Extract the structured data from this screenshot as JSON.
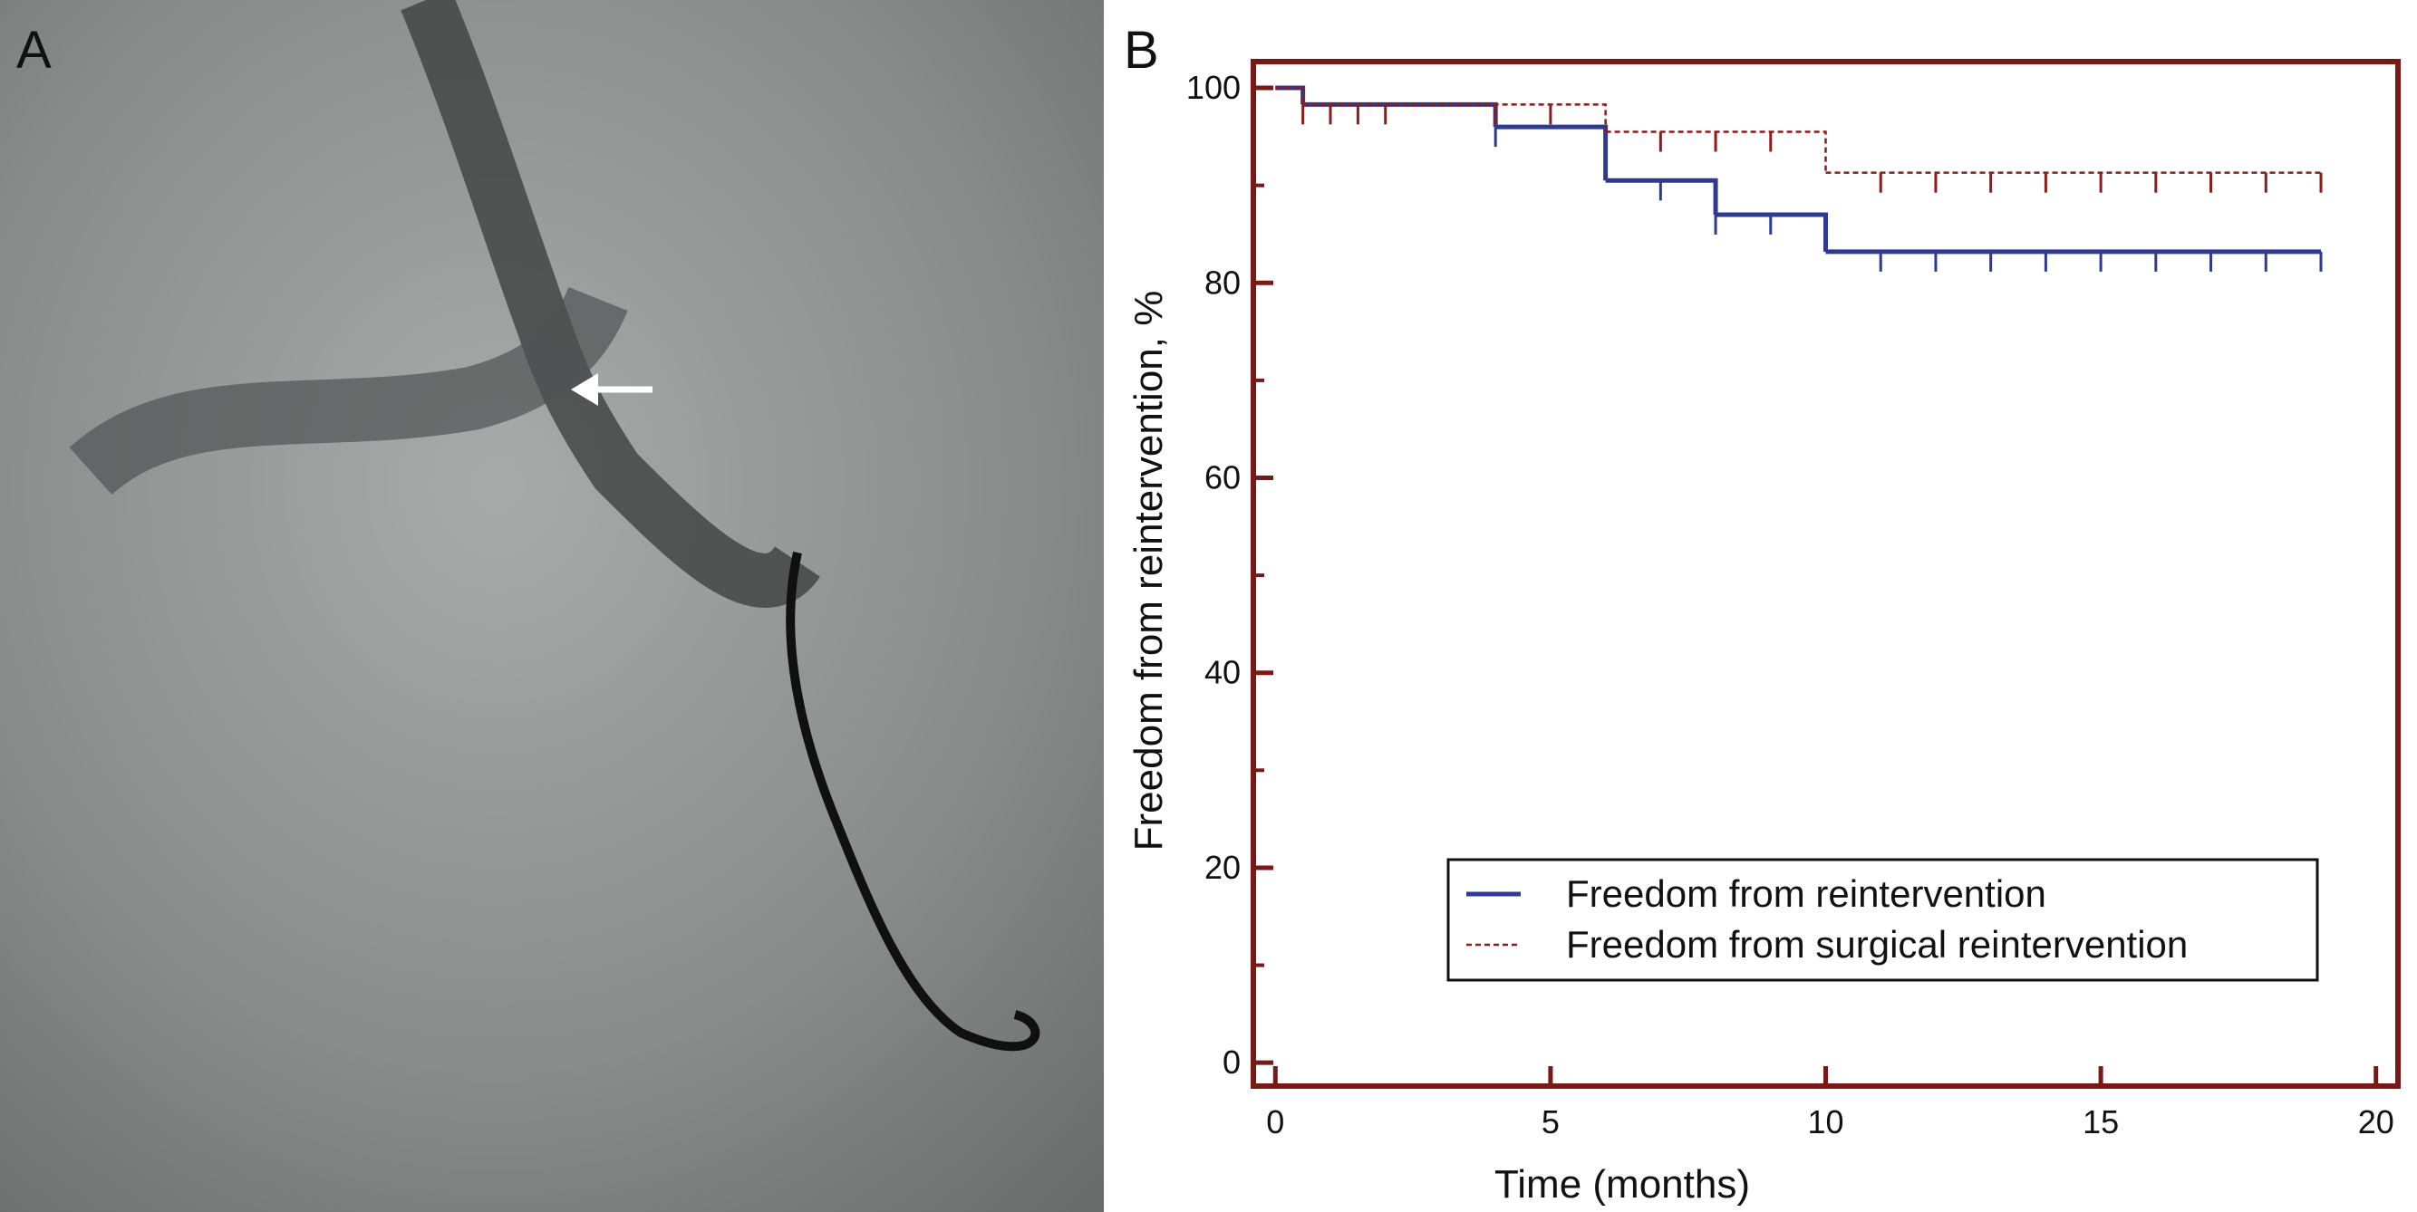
{
  "image_panel": {
    "label": "A"
  },
  "chart_data": {
    "type": "step",
    "panel_label": "B",
    "x_label": "Time (months)",
    "y_label": "Freedom from reintervention, %",
    "xlim": [
      -0.4,
      20.4
    ],
    "ylim": [
      -2.4,
      102.7
    ],
    "xticks": [
      0,
      5,
      10,
      15,
      20
    ],
    "yticks": [
      0,
      20,
      40,
      60,
      80,
      100
    ],
    "y_minor_ticks": [
      10,
      30,
      50,
      70,
      90
    ],
    "legend": "lower right",
    "series": [
      {
        "name": "Freedom from reintervention",
        "color": "#2e3a92",
        "dash": false,
        "x": [
          0,
          0.5,
          4,
          6,
          8,
          10,
          19
        ],
        "values": [
          100,
          98.3,
          96,
          90.5,
          87,
          83.2,
          83.2
        ],
        "censor_x": [
          4,
          7,
          8,
          9,
          11,
          12,
          13,
          14,
          15,
          16,
          17,
          18,
          19
        ]
      },
      {
        "name": "Freedom from surgical reintervention",
        "color": "#8b1c1c",
        "dash": true,
        "x": [
          0,
          0.5,
          6,
          10,
          19
        ],
        "values": [
          100,
          98.3,
          95.5,
          91.3,
          91.3
        ],
        "censor_x": [
          0.5,
          1,
          1.5,
          2,
          4,
          5,
          7,
          8,
          9,
          11,
          12,
          13,
          14,
          15,
          16,
          17,
          18,
          19
        ]
      }
    ]
  }
}
